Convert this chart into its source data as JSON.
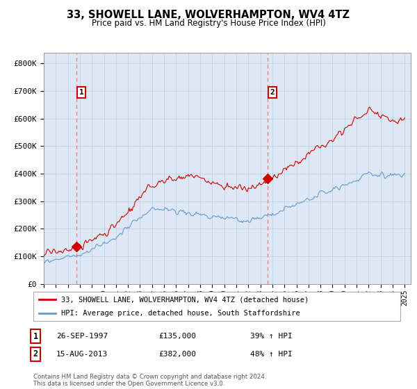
{
  "title": "33, SHOWELL LANE, WOLVERHAMPTON, WV4 4TZ",
  "subtitle": "Price paid vs. HM Land Registry's House Price Index (HPI)",
  "ylabel_ticks": [
    "£0",
    "£100K",
    "£200K",
    "£300K",
    "£400K",
    "£500K",
    "£600K",
    "£700K",
    "£800K"
  ],
  "ytick_values": [
    0,
    100000,
    200000,
    300000,
    400000,
    500000,
    600000,
    700000,
    800000
  ],
  "ylim": [
    0,
    840000
  ],
  "xlim_start": 1995.0,
  "xlim_end": 2025.5,
  "sale1_x": 1997.73,
  "sale1_y": 135000,
  "sale2_x": 2013.62,
  "sale2_y": 382000,
  "sale1_label": "26-SEP-1997",
  "sale1_price": "£135,000",
  "sale1_hpi": "39% ↑ HPI",
  "sale2_label": "15-AUG-2013",
  "sale2_price": "£382,000",
  "sale2_hpi": "48% ↑ HPI",
  "legend_line1": "33, SHOWELL LANE, WOLVERHAMPTON, WV4 4TZ (detached house)",
  "legend_line2": "HPI: Average price, detached house, South Staffordshire",
  "footer": "Contains HM Land Registry data © Crown copyright and database right 2024.\nThis data is licensed under the Open Government Licence v3.0.",
  "red_color": "#cc0000",
  "blue_color": "#6699cc",
  "dashed_color": "#ee8888",
  "bg_color": "#ffffff",
  "chart_bg": "#dde8f4",
  "grid_color": "#b8cfe0"
}
